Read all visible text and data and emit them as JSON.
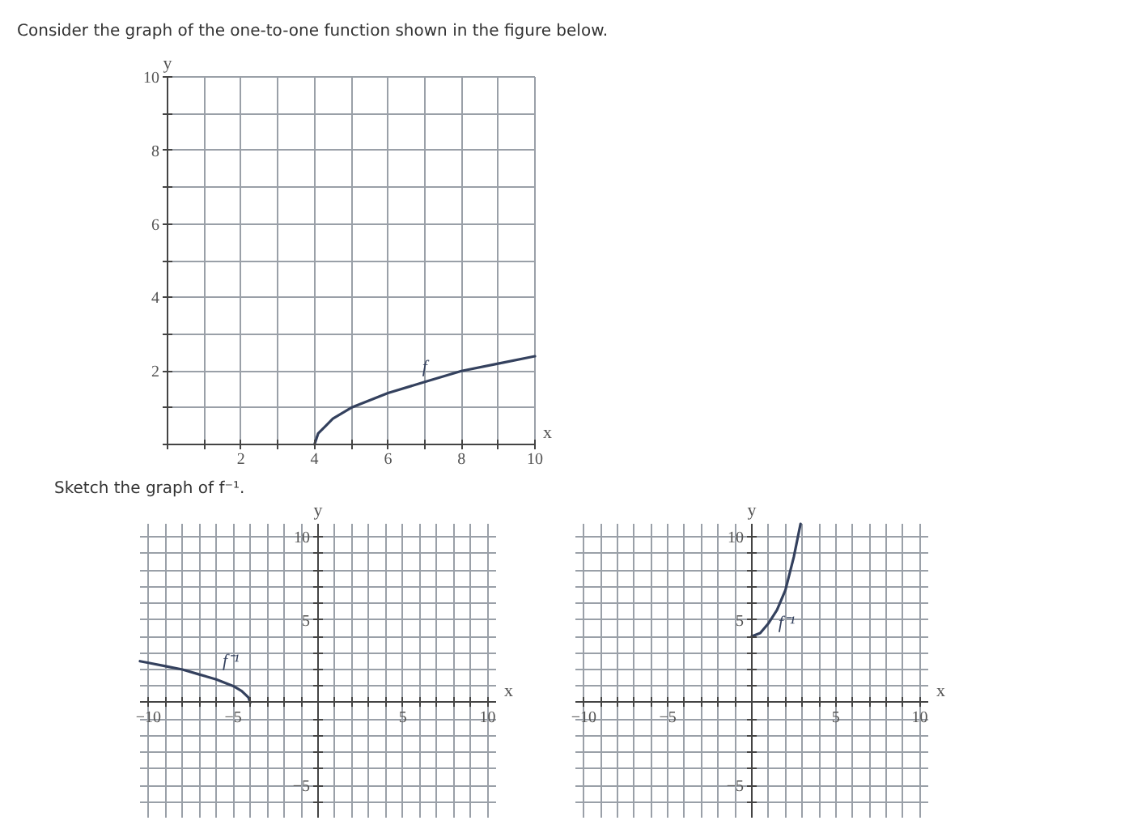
{
  "chart_data": [
    {
      "type": "line",
      "title": "Consider the graph of the one-to-one function shown in the figure below.",
      "xlabel": "x",
      "ylabel": "y",
      "series": [
        {
          "name": "f",
          "color": "#34415e",
          "x": [
            4,
            4.1,
            4.3,
            4.5,
            5,
            5.5,
            6,
            7,
            8,
            9,
            10
          ],
          "values": [
            0,
            0.3,
            0.5,
            0.7,
            1,
            1.2,
            1.4,
            1.7,
            2,
            2.2,
            2.4
          ]
        }
      ],
      "xlim": [
        0,
        10
      ],
      "ylim": [
        0,
        10
      ],
      "xticks": [
        {
          "value": 0,
          "label": null
        },
        {
          "value": 1,
          "label": null
        },
        2,
        {
          "value": 3,
          "label": null
        },
        4,
        {
          "value": 5,
          "label": null
        },
        6,
        {
          "value": 7,
          "label": null
        },
        8,
        {
          "value": 9,
          "label": null
        },
        10
      ],
      "yticks": [
        {
          "value": 0,
          "label": null
        },
        {
          "value": 1,
          "label": null
        },
        2,
        {
          "value": 3,
          "label": null
        },
        4,
        {
          "value": 5,
          "label": null
        },
        6,
        {
          "value": 7,
          "label": null
        },
        8,
        {
          "value": 9,
          "label": null
        },
        10
      ],
      "grid": true
    },
    {
      "type": "line",
      "title": "Sketch the graph of f⁻¹.",
      "xlabel": "x",
      "ylabel": "y",
      "series": [
        {
          "name": "f⁻¹",
          "color": "#34415e",
          "x": [
            -4,
            -4.1,
            -4.3,
            -4.5,
            -5,
            -6,
            -7,
            -8,
            -9,
            -10,
            -10.5
          ],
          "values": [
            0,
            0.3,
            0.5,
            0.7,
            1,
            1.4,
            1.7,
            2,
            2.2,
            2.4,
            2.5
          ]
        }
      ],
      "xlim": [
        -10.5,
        10.5
      ],
      "ylim": [
        -7,
        10.8
      ],
      "xticks": [
        -10,
        {
          "value": -9,
          "label": null
        },
        {
          "value": -8,
          "label": null
        },
        {
          "value": -7,
          "label": null
        },
        {
          "value": -6,
          "label": null
        },
        -5,
        {
          "value": -4,
          "label": null
        },
        {
          "value": -3,
          "label": null
        },
        {
          "value": -2,
          "label": null
        },
        {
          "value": -1,
          "label": null
        },
        {
          "value": 0,
          "label": null
        },
        {
          "value": 1,
          "label": null
        },
        {
          "value": 2,
          "label": null
        },
        {
          "value": 3,
          "label": null
        },
        {
          "value": 4,
          "label": null
        },
        5,
        {
          "value": 6,
          "label": null
        },
        {
          "value": 7,
          "label": null
        },
        {
          "value": 8,
          "label": null
        },
        {
          "value": 9,
          "label": null
        },
        10
      ],
      "yticks": [
        {
          "value": -7,
          "label": null
        },
        {
          "value": -6,
          "label": null
        },
        -5,
        {
          "value": -4,
          "label": null
        },
        {
          "value": -3,
          "label": null
        },
        {
          "value": -2,
          "label": null
        },
        {
          "value": -1,
          "label": null
        },
        {
          "value": 0,
          "label": null
        },
        {
          "value": 1,
          "label": null
        },
        {
          "value": 2,
          "label": null
        },
        {
          "value": 3,
          "label": null
        },
        {
          "value": 4,
          "label": null
        },
        5,
        {
          "value": 6,
          "label": null
        },
        {
          "value": 7,
          "label": null
        },
        {
          "value": 8,
          "label": null
        },
        {
          "value": 9,
          "label": null
        },
        10
      ],
      "grid": true
    },
    {
      "type": "line",
      "xlabel": "x",
      "ylabel": "y",
      "series": [
        {
          "name": "f⁻¹",
          "color": "#34415e",
          "x": [
            0,
            0.5,
            1,
            1.5,
            2,
            2.5,
            2.9
          ],
          "values": [
            4,
            4.2,
            4.8,
            5.6,
            6.8,
            8.8,
            10.8
          ]
        }
      ],
      "xlim": [
        -10.5,
        10.5
      ],
      "ylim": [
        -7,
        10.8
      ],
      "xticks": [
        -10,
        {
          "value": -9,
          "label": null
        },
        {
          "value": -8,
          "label": null
        },
        {
          "value": -7,
          "label": null
        },
        {
          "value": -6,
          "label": null
        },
        -5,
        {
          "value": -4,
          "label": null
        },
        {
          "value": -3,
          "label": null
        },
        {
          "value": -2,
          "label": null
        },
        {
          "value": -1,
          "label": null
        },
        {
          "value": 0,
          "label": null
        },
        {
          "value": 1,
          "label": null
        },
        {
          "value": 2,
          "label": null
        },
        {
          "value": 3,
          "label": null
        },
        {
          "value": 4,
          "label": null
        },
        5,
        {
          "value": 6,
          "label": null
        },
        {
          "value": 7,
          "label": null
        },
        {
          "value": 8,
          "label": null
        },
        {
          "value": 9,
          "label": null
        },
        10
      ],
      "yticks": [
        {
          "value": -7,
          "label": null
        },
        {
          "value": -6,
          "label": null
        },
        -5,
        {
          "value": -4,
          "label": null
        },
        {
          "value": -3,
          "label": null
        },
        {
          "value": -2,
          "label": null
        },
        {
          "value": -1,
          "label": null
        },
        {
          "value": 0,
          "label": null
        },
        {
          "value": 1,
          "label": null
        },
        {
          "value": 2,
          "label": null
        },
        {
          "value": 3,
          "label": null
        },
        {
          "value": 4,
          "label": null
        },
        5,
        {
          "value": 6,
          "label": null
        },
        {
          "value": 7,
          "label": null
        },
        {
          "value": 8,
          "label": null
        },
        {
          "value": 9,
          "label": null
        },
        10
      ],
      "grid": true
    }
  ]
}
